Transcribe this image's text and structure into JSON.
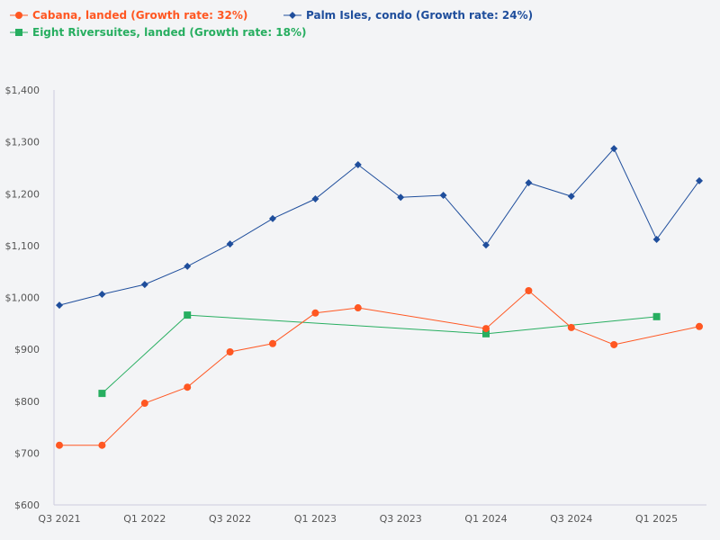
{
  "chart_data": {
    "type": "line",
    "title": "",
    "xlabel": "",
    "ylabel": "",
    "categories": [
      "Q3 2021",
      "Q4 2021",
      "Q1 2022",
      "Q2 2022",
      "Q3 2022",
      "Q4 2022",
      "Q1 2023",
      "Q2 2023",
      "Q3 2023",
      "Q4 2023",
      "Q1 2024",
      "Q2 2024",
      "Q3 2024",
      "Q4 2024",
      "Q1 2025",
      "Q2 2025"
    ],
    "x_tick_labels": [
      "Q3 2021",
      "Q1 2022",
      "Q3 2022",
      "Q1 2023",
      "Q3 2023",
      "Q1 2024",
      "Q3 2024",
      "Q1 2025"
    ],
    "y_tick_labels": [
      "$600",
      "$700",
      "$800",
      "$900",
      "$1,000",
      "$1,100",
      "$1,200",
      "$1,300",
      "$1,400"
    ],
    "ylim": [
      600,
      1400
    ],
    "grid": false,
    "legend_position": "top-left",
    "series": [
      {
        "name": "Cabana, landed (Growth rate: 32%)",
        "color": "#ff5722",
        "marker": "circle",
        "values": [
          715,
          715,
          796,
          827,
          895,
          911,
          970,
          980,
          null,
          null,
          940,
          1013,
          942,
          909,
          null,
          944
        ]
      },
      {
        "name": "Palm Isles, condo (Growth rate: 24%)",
        "color": "#1f4e9c",
        "marker": "diamond",
        "values": [
          985,
          1006,
          1025,
          1060,
          1103,
          1152,
          1190,
          1256,
          1193,
          1197,
          1101,
          1221,
          1195,
          1287,
          1112,
          1225
        ]
      },
      {
        "name": "Eight Riversuites, landed (Growth rate: 18%)",
        "color": "#27ae60",
        "marker": "square",
        "values": [
          null,
          815,
          null,
          966,
          null,
          null,
          null,
          null,
          null,
          null,
          930,
          null,
          null,
          null,
          963,
          null
        ]
      }
    ]
  }
}
